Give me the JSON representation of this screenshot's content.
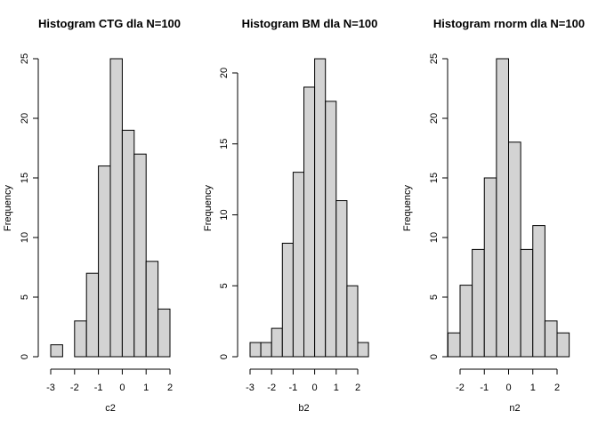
{
  "chart_data": [
    {
      "type": "bar",
      "title": "Histogram CTG dla N=100",
      "xlabel": "c2",
      "ylabel": "Frequency",
      "bin_width": 0.5,
      "bins_start": [
        -3,
        -2.5,
        -2,
        -1.5,
        -1,
        -0.5,
        0,
        0.5,
        1,
        1.5
      ],
      "values": [
        1,
        0,
        3,
        7,
        16,
        25,
        19,
        17,
        8,
        4
      ],
      "xticks": [
        -3,
        -2,
        -1,
        0,
        1,
        2
      ],
      "xtick_labels": [
        "-3",
        "-2",
        "-1",
        "0",
        "1",
        "2"
      ],
      "yticks": [
        0,
        5,
        10,
        15,
        20,
        25
      ],
      "ytick_labels": [
        "0",
        "5",
        "10",
        "15",
        "20",
        "25"
      ],
      "xlim": [
        -3,
        2
      ],
      "ylim": [
        0,
        25
      ]
    },
    {
      "type": "bar",
      "title": "Histogram BM dla N=100",
      "xlabel": "b2",
      "ylabel": "Frequency",
      "bin_width": 0.5,
      "bins_start": [
        -3,
        -2.5,
        -2,
        -1.5,
        -1,
        -0.5,
        0,
        0.5,
        1,
        1.5,
        2
      ],
      "values": [
        1,
        1,
        2,
        8,
        13,
        19,
        21,
        18,
        11,
        5,
        1
      ],
      "xticks": [
        -3,
        -2,
        -1,
        0,
        1,
        2
      ],
      "xtick_labels": [
        "-3",
        "-2",
        "-1",
        "0",
        "1",
        "2"
      ],
      "yticks": [
        0,
        5,
        10,
        15,
        20
      ],
      "ytick_labels": [
        "0",
        "5",
        "10",
        "15",
        "20"
      ],
      "xlim": [
        -3,
        2.5
      ],
      "ylim": [
        0,
        21
      ]
    },
    {
      "type": "bar",
      "title": "Histogram rnorm dla N=100",
      "xlabel": "n2",
      "ylabel": "Frequency",
      "bin_width": 0.5,
      "bins_start": [
        -2.5,
        -2,
        -1.5,
        -1,
        -0.5,
        0,
        0.5,
        1,
        1.5,
        2
      ],
      "values": [
        2,
        6,
        9,
        15,
        25,
        18,
        9,
        11,
        3,
        2
      ],
      "xticks": [
        -2,
        -1,
        0,
        1,
        2
      ],
      "xtick_labels": [
        "-2",
        "-1",
        "0",
        "1",
        "2"
      ],
      "yticks": [
        0,
        5,
        10,
        15,
        20,
        25
      ],
      "ytick_labels": [
        "0",
        "5",
        "10",
        "15",
        "20",
        "25"
      ],
      "xlim": [
        -2.5,
        2.5
      ],
      "ylim": [
        0,
        25
      ]
    }
  ]
}
